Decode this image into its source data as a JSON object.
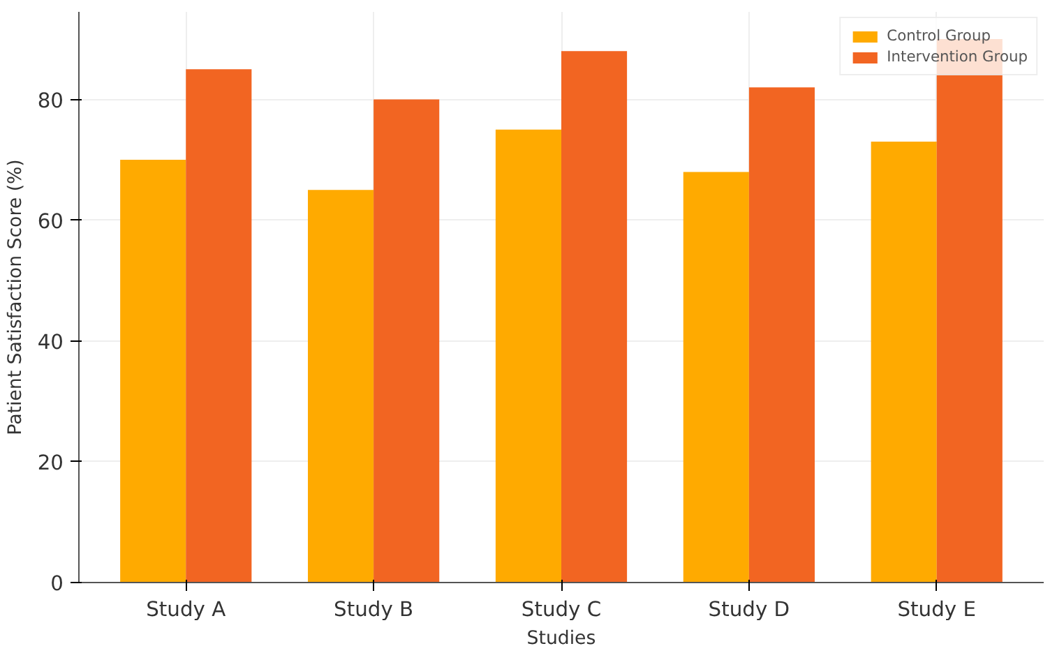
{
  "chart_data": {
    "type": "bar",
    "xlabel": "Studies",
    "ylabel": "Patient Satisfaction Score (%)",
    "categories": [
      "Study A",
      "Study B",
      "Study C",
      "Study D",
      "Study E"
    ],
    "series": [
      {
        "name": "Control Group",
        "color": "#ffaa00",
        "values": [
          70,
          65,
          75,
          68,
          73
        ]
      },
      {
        "name": "Intervention Group",
        "color": "#f26522",
        "values": [
          85,
          80,
          88,
          82,
          90
        ]
      }
    ],
    "ylim": [
      0,
      94.5
    ],
    "yticks": [
      0,
      20,
      40,
      60,
      80
    ],
    "grid": true,
    "legend": "top right"
  }
}
